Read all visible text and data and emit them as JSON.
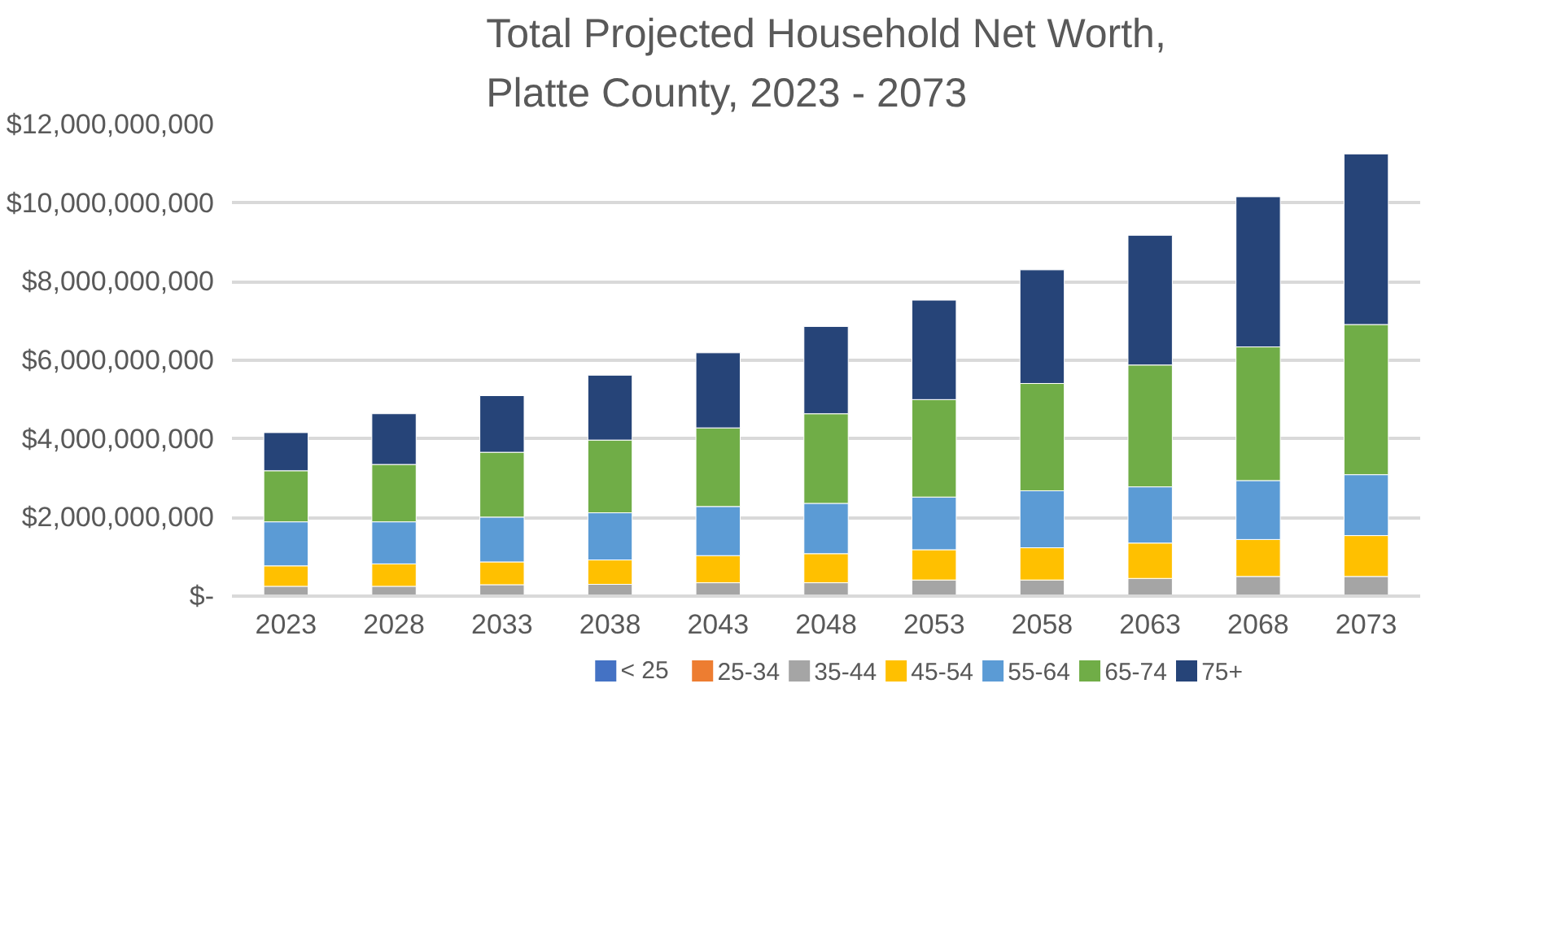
{
  "chart_data": {
    "type": "bar",
    "stacked": true,
    "title": "Total Projected Household Net Worth,\nPlatte County, 2023 - 2073",
    "categories": [
      "2023",
      "2028",
      "2033",
      "2038",
      "2043",
      "2048",
      "2053",
      "2058",
      "2063",
      "2068",
      "2073"
    ],
    "ylim": [
      0,
      12000000000
    ],
    "yticks": [
      {
        "value": 0,
        "label": "$-"
      },
      {
        "value": 2000000000,
        "label": "$2,000,000,000"
      },
      {
        "value": 4000000000,
        "label": "$4,000,000,000"
      },
      {
        "value": 6000000000,
        "label": "$6,000,000,000"
      },
      {
        "value": 8000000000,
        "label": "$8,000,000,000"
      },
      {
        "value": 10000000000,
        "label": "$10,000,000,000"
      },
      {
        "value": 12000000000,
        "label": "$12,000,000,000"
      }
    ],
    "grid": "y",
    "legend": "bottom",
    "series": [
      {
        "name": "< 25",
        "color": "#4472c4",
        "values": [
          0,
          0,
          0,
          0,
          0,
          0,
          0,
          0,
          0,
          0,
          0
        ]
      },
      {
        "name": "25-34",
        "color": "#ed7d31",
        "values": [
          20000000,
          20000000,
          20000000,
          20000000,
          20000000,
          20000000,
          20000000,
          20000000,
          20000000,
          20000000,
          20000000
        ]
      },
      {
        "name": "35-44",
        "color": "#a5a5a5",
        "values": [
          230000000,
          230000000,
          270000000,
          280000000,
          320000000,
          320000000,
          390000000,
          390000000,
          430000000,
          480000000,
          480000000
        ]
      },
      {
        "name": "45-54",
        "color": "#ffc000",
        "values": [
          520000000,
          570000000,
          580000000,
          620000000,
          690000000,
          740000000,
          770000000,
          820000000,
          900000000,
          940000000,
          1040000000
        ]
      },
      {
        "name": "55-64",
        "color": "#5b9bd5",
        "values": [
          1120000000,
          1070000000,
          1140000000,
          1200000000,
          1250000000,
          1280000000,
          1340000000,
          1450000000,
          1430000000,
          1500000000,
          1550000000
        ]
      },
      {
        "name": "65-74",
        "color": "#70ad47",
        "values": [
          1300000000,
          1460000000,
          1650000000,
          1850000000,
          2000000000,
          2280000000,
          2480000000,
          2730000000,
          3100000000,
          3400000000,
          3820000000
        ]
      },
      {
        "name": "75+",
        "color": "#264478",
        "values": [
          970000000,
          1290000000,
          1440000000,
          1650000000,
          1910000000,
          2220000000,
          2530000000,
          2890000000,
          3300000000,
          3820000000,
          4340000000
        ]
      }
    ]
  }
}
